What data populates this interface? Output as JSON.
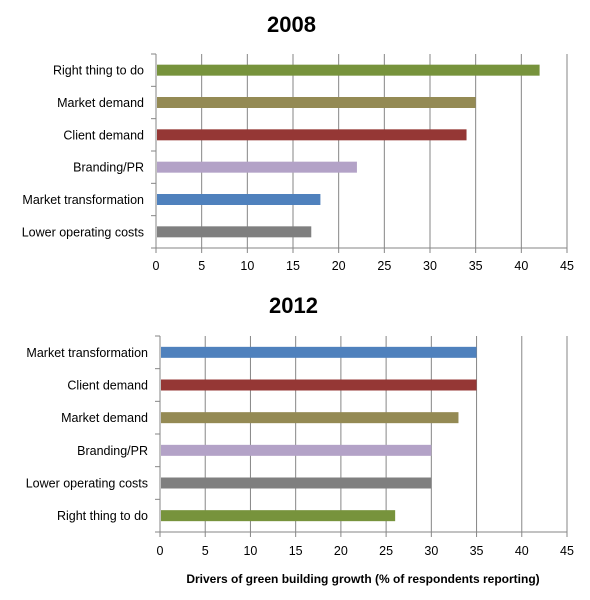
{
  "chart_data": [
    {
      "type": "bar",
      "orientation": "horizontal",
      "title": "2008",
      "categories": [
        "Right thing to do",
        "Market demand",
        "Client demand",
        "Branding/PR",
        "Market transformation",
        "Lower operating costs"
      ],
      "values": [
        42,
        35,
        34,
        22,
        18,
        17
      ],
      "colors": [
        "#77933c",
        "#948a54",
        "#953735",
        "#b3a2c7",
        "#4f81bd",
        "#7f7f7f"
      ],
      "xlim": [
        0,
        45
      ],
      "xticks": [
        "0",
        "5",
        "10",
        "15",
        "20",
        "25",
        "30",
        "35",
        "40",
        "45"
      ],
      "grid": "vertical",
      "xlabel": ""
    },
    {
      "type": "bar",
      "orientation": "horizontal",
      "title": "2012",
      "categories": [
        "Market transformation",
        "Client demand",
        "Market demand",
        "Branding/PR",
        "Lower operating costs",
        "Right thing to do"
      ],
      "values": [
        35,
        35,
        33,
        30,
        30,
        26
      ],
      "colors": [
        "#4f81bd",
        "#953735",
        "#948a54",
        "#b3a2c7",
        "#7f7f7f",
        "#77933c"
      ],
      "xlim": [
        0,
        45
      ],
      "xticks": [
        "0",
        "5",
        "10",
        "15",
        "20",
        "25",
        "30",
        "35",
        "40",
        "45"
      ],
      "grid": "vertical",
      "xlabel": "Drivers of green building growth (% of respondents reporting)"
    }
  ]
}
